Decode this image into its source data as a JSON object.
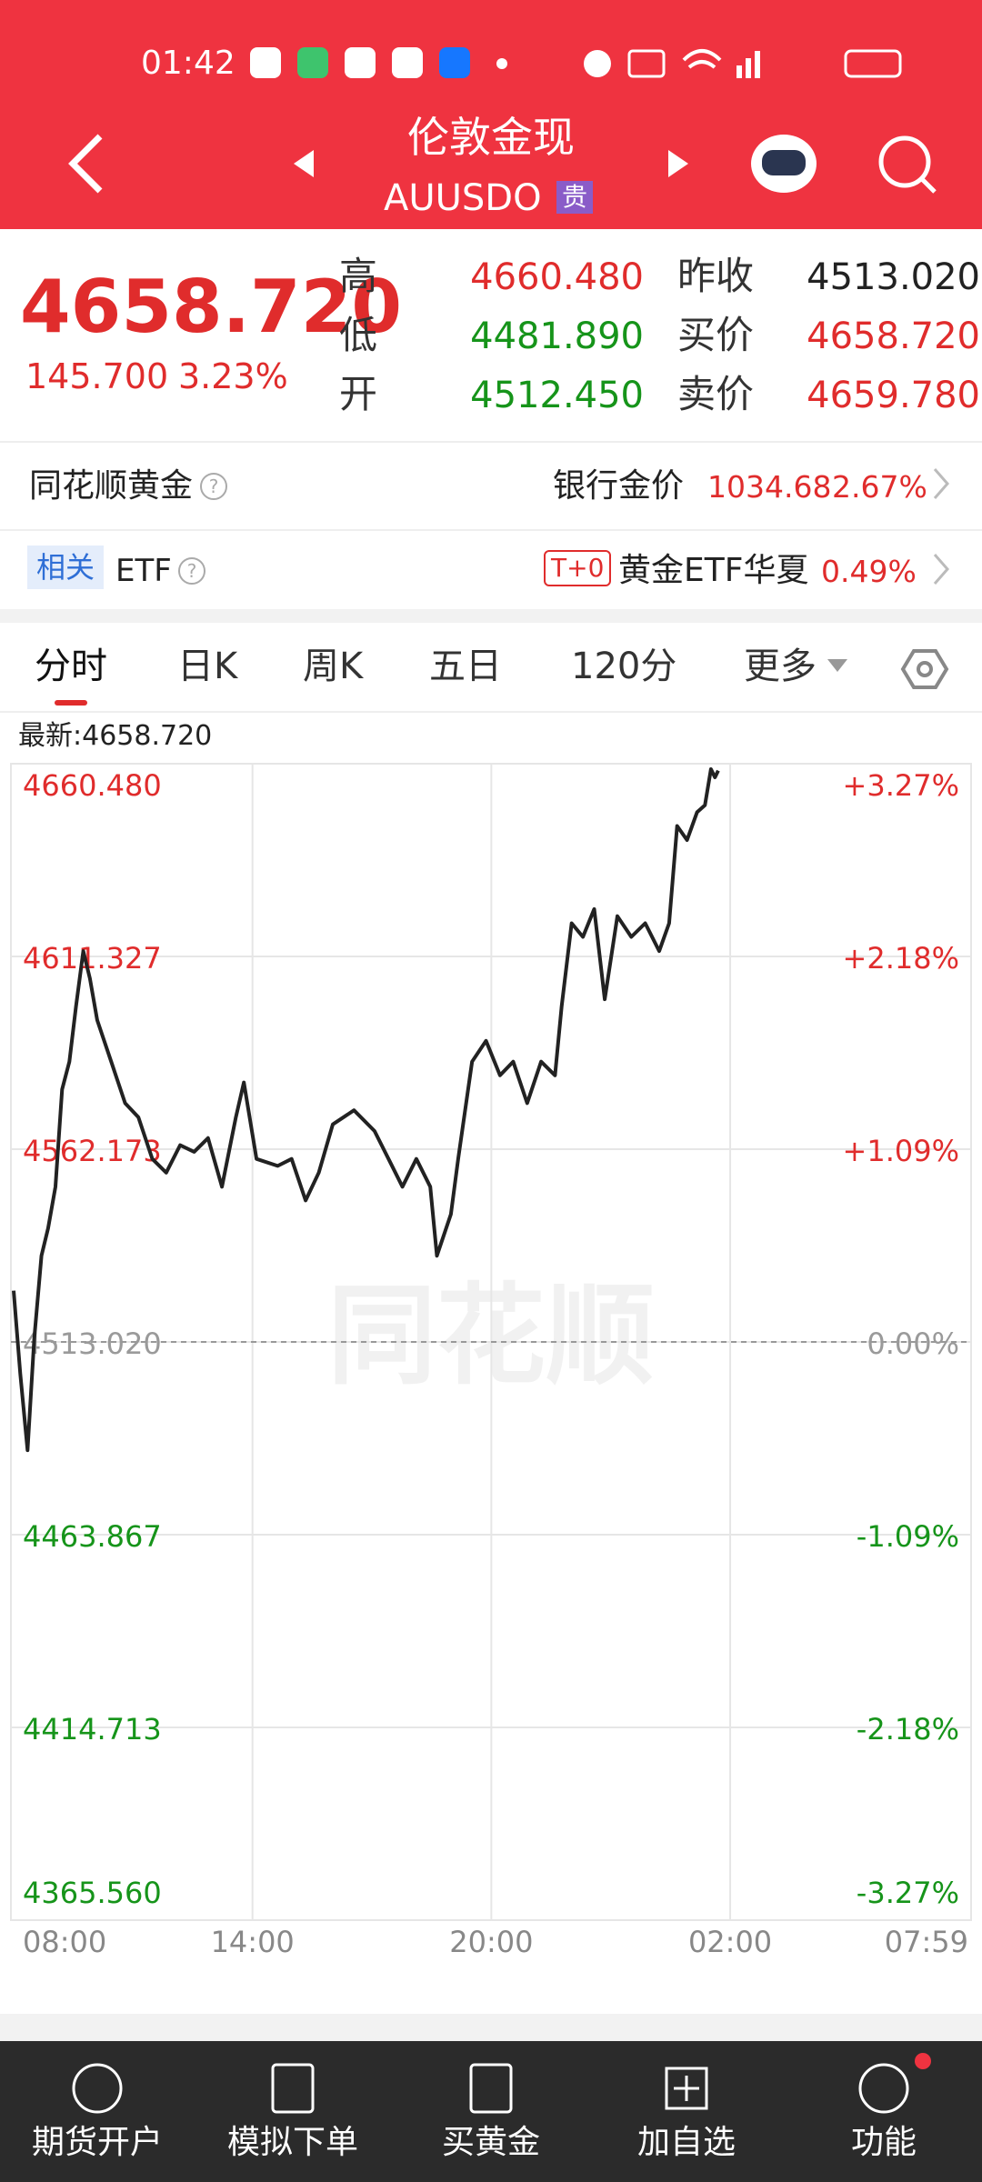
{
  "status_bar": {
    "time": "01:42"
  },
  "header": {
    "title": "伦敦金现",
    "code": "AUUSDO",
    "badge": "贵"
  },
  "quote": {
    "price": "4658.720",
    "change": "145.700",
    "change_pct": "3.23%",
    "stats": [
      {
        "label": "高",
        "value": "4660.480"
      },
      {
        "label": "昨收",
        "value": "4513.020"
      },
      {
        "label": "低",
        "value": "4481.890"
      },
      {
        "label": "买价",
        "value": "4658.720"
      },
      {
        "label": "开",
        "value": "4512.450"
      },
      {
        "label": "卖价",
        "value": "4659.780"
      }
    ]
  },
  "links": [
    {
      "name": "同花顺黄金",
      "help": "?",
      "label": "银行金价",
      "value": "1034.68",
      "pct": "2.67%"
    },
    {
      "tag": "相关",
      "name": "ETF",
      "help": "?",
      "badge": "T+0",
      "label": "黄金ETF华夏",
      "pct": "0.49%"
    }
  ],
  "tabs": [
    "分时",
    "日K",
    "周K",
    "五日",
    "120分",
    "更多"
  ],
  "chart_data": {
    "type": "line",
    "latest_label": "最新:4658.720",
    "watermark": "同花顺",
    "color": "#222222",
    "up_color": "#e02c2c",
    "down_color": "#16941a",
    "flat_color": "#9a9a9a",
    "x": [
      "08:00",
      "08:10",
      "08:21",
      "08:31",
      "08:42",
      "08:52",
      "09:03",
      "09:13",
      "09:24",
      "09:34",
      "09:45",
      "09:55",
      "10:06",
      "10:27",
      "10:48",
      "11:08",
      "11:29",
      "11:50",
      "12:11",
      "12:32",
      "12:53",
      "13:14",
      "13:35",
      "13:47",
      "14:06",
      "14:38",
      "14:59",
      "15:20",
      "15:40",
      "16:01",
      "16:33",
      "17:04",
      "17:25",
      "17:46",
      "18:07",
      "18:28",
      "18:38",
      "18:59",
      "19:10",
      "19:31",
      "19:52",
      "20:13",
      "20:33",
      "20:54",
      "21:15",
      "21:36",
      "21:46",
      "22:01",
      "22:18",
      "22:35",
      "22:51",
      "23:10",
      "23:31",
      "23:52",
      "00:13",
      "00:28",
      "00:40",
      "00:55",
      "01:10",
      "01:22",
      "01:31",
      "01:37",
      "01:42"
    ],
    "values": [
      4526.1,
      4504.9,
      4485.4,
      4513.7,
      4535.0,
      4542.0,
      4552.6,
      4577.4,
      4584.5,
      4598.6,
      4612.7,
      4605.7,
      4595.1,
      4584.5,
      4573.9,
      4570.3,
      4559.7,
      4556.2,
      4563.2,
      4561.5,
      4565.0,
      4552.6,
      4570.3,
      4579.2,
      4559.7,
      4557.9,
      4559.7,
      4549.1,
      4556.2,
      4568.5,
      4572.1,
      4566.8,
      4559.7,
      4552.6,
      4559.7,
      4552.6,
      4535.0,
      4545.6,
      4559.7,
      4584.5,
      4589.8,
      4581.0,
      4584.5,
      4573.9,
      4584.5,
      4581.0,
      4598.6,
      4619.8,
      4616.3,
      4623.4,
      4600.4,
      4621.6,
      4616.3,
      4619.8,
      4612.7,
      4619.8,
      4644.6,
      4641.0,
      4648.1,
      4649.9,
      4659.1,
      4657.0,
      4658.72
    ],
    "xlim": [
      "08:00",
      "07:59"
    ],
    "xticks": [
      "08:00",
      "14:00",
      "20:00",
      "02:00",
      "07:59"
    ],
    "ylim": [
      4365.56,
      4660.48
    ],
    "yticks": [
      {
        "value": 4660.48,
        "label": "4660.480"
      },
      {
        "value": 4611.327,
        "label": "4611.327"
      },
      {
        "value": 4562.173,
        "label": "4562.173"
      },
      {
        "value": 4513.02,
        "label": "4513.020"
      },
      {
        "value": 4463.867,
        "label": "4463.867"
      },
      {
        "value": 4414.713,
        "label": "4414.713"
      },
      {
        "value": 4365.56,
        "label": "4365.560"
      }
    ],
    "y2lim": [
      -3.27,
      3.27
    ],
    "y2ticks": [
      {
        "value": 3.27,
        "label": "+3.27%"
      },
      {
        "value": 2.18,
        "label": "+2.18%"
      },
      {
        "value": 1.09,
        "label": "+1.09%"
      },
      {
        "value": 0,
        "label": "0.00%"
      },
      {
        "value": -1.09,
        "label": "-1.09%"
      },
      {
        "value": -2.18,
        "label": "-2.18%"
      },
      {
        "value": -3.27,
        "label": "-3.27%"
      }
    ],
    "ref_line": 4513.02,
    "grid": true
  },
  "bottom_nav": [
    "期货开户",
    "模拟下单",
    "买黄金",
    "加自选",
    "功能"
  ]
}
